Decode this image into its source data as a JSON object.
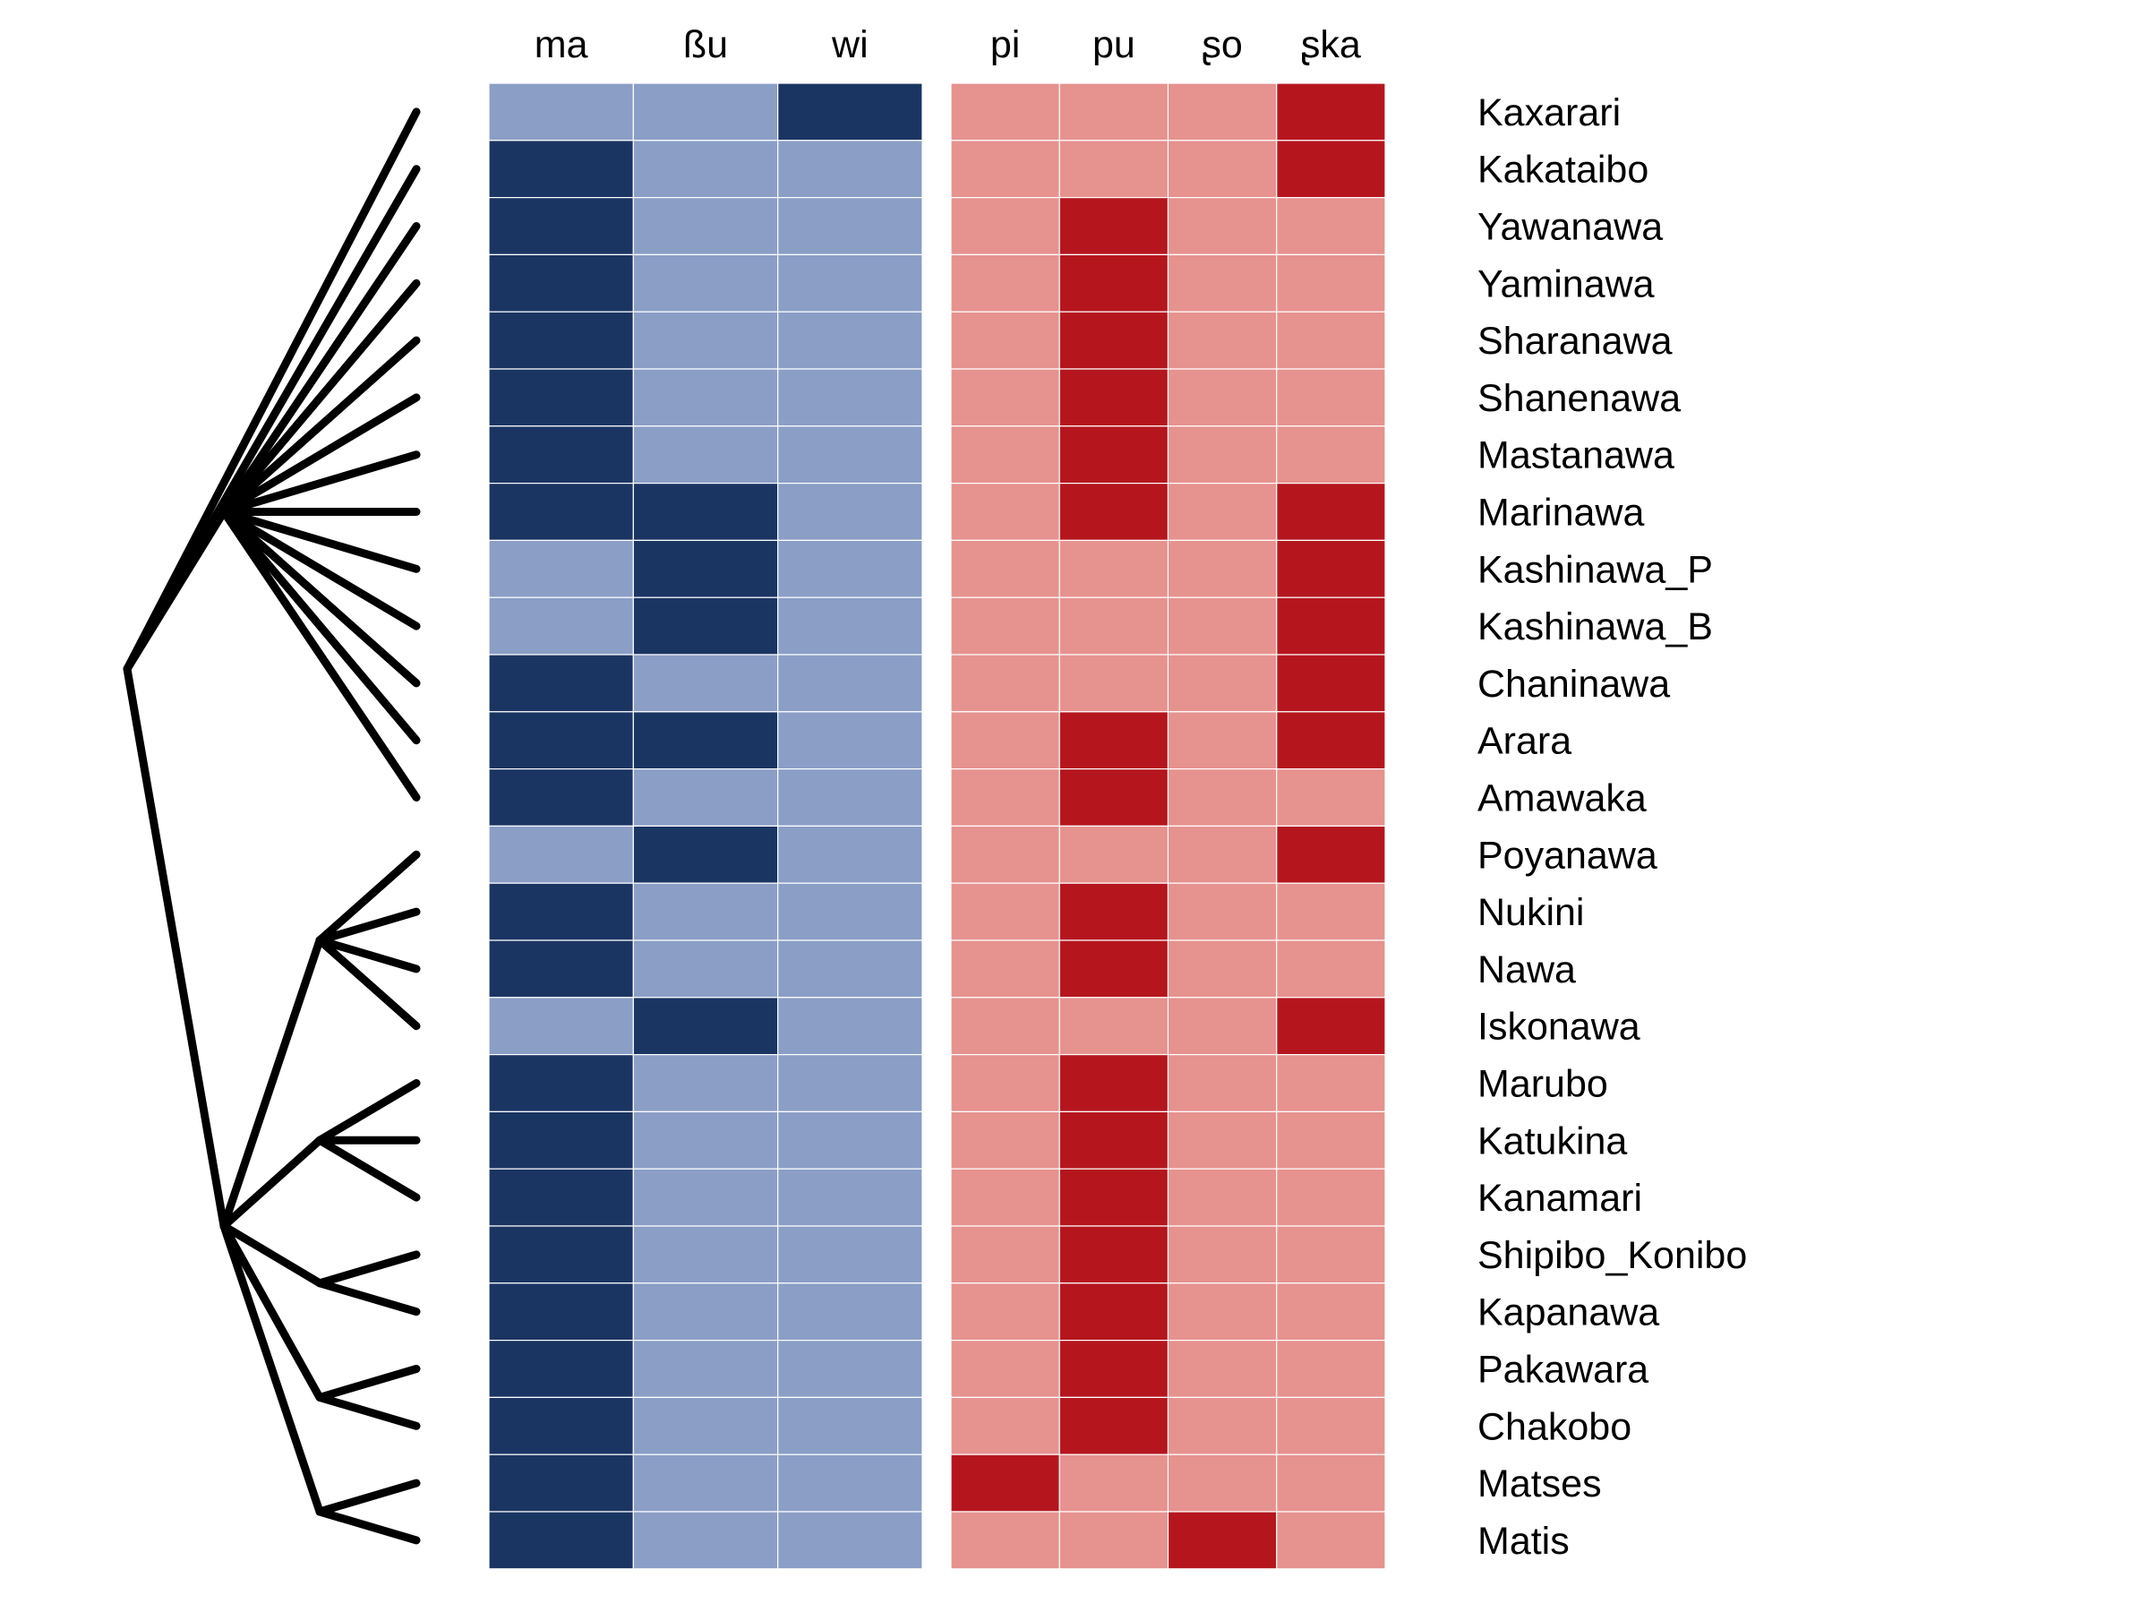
{
  "colors": {
    "blue_present": "#1b3563",
    "blue_absent": "#8a9ec6",
    "red_present": "#b5161e",
    "red_absent": "#e6928f",
    "tree": "#000000"
  },
  "blocks": [
    {
      "id": "left",
      "columns": [
        "ma",
        "ßu",
        "wi"
      ]
    },
    {
      "id": "right",
      "columns": [
        "pi",
        "pu",
        "ʂo",
        "ʂka"
      ]
    }
  ],
  "languages": [
    {
      "name": "Kaxarari",
      "left": [
        0,
        0,
        1
      ],
      "right": [
        0,
        0,
        0,
        1
      ]
    },
    {
      "name": "Kakataibo",
      "left": [
        1,
        0,
        0
      ],
      "right": [
        0,
        0,
        0,
        1
      ]
    },
    {
      "name": "Yawanawa",
      "left": [
        1,
        0,
        0
      ],
      "right": [
        0,
        1,
        0,
        0
      ]
    },
    {
      "name": "Yaminawa",
      "left": [
        1,
        0,
        0
      ],
      "right": [
        0,
        1,
        0,
        0
      ]
    },
    {
      "name": "Sharanawa",
      "left": [
        1,
        0,
        0
      ],
      "right": [
        0,
        1,
        0,
        0
      ]
    },
    {
      "name": "Shanenawa",
      "left": [
        1,
        0,
        0
      ],
      "right": [
        0,
        1,
        0,
        0
      ]
    },
    {
      "name": "Mastanawa",
      "left": [
        1,
        0,
        0
      ],
      "right": [
        0,
        1,
        0,
        0
      ]
    },
    {
      "name": "Marinawa",
      "left": [
        1,
        1,
        0
      ],
      "right": [
        0,
        1,
        0,
        1
      ]
    },
    {
      "name": "Kashinawa_P",
      "left": [
        0,
        1,
        0
      ],
      "right": [
        0,
        0,
        0,
        1
      ]
    },
    {
      "name": "Kashinawa_B",
      "left": [
        0,
        1,
        0
      ],
      "right": [
        0,
        0,
        0,
        1
      ]
    },
    {
      "name": "Chaninawa",
      "left": [
        1,
        0,
        0
      ],
      "right": [
        0,
        0,
        0,
        1
      ]
    },
    {
      "name": "Arara",
      "left": [
        1,
        1,
        0
      ],
      "right": [
        0,
        1,
        0,
        1
      ]
    },
    {
      "name": "Amawaka",
      "left": [
        1,
        0,
        0
      ],
      "right": [
        0,
        1,
        0,
        0
      ]
    },
    {
      "name": "Poyanawa",
      "left": [
        0,
        1,
        0
      ],
      "right": [
        0,
        0,
        0,
        1
      ]
    },
    {
      "name": "Nukini",
      "left": [
        1,
        0,
        0
      ],
      "right": [
        0,
        1,
        0,
        0
      ]
    },
    {
      "name": "Nawa",
      "left": [
        1,
        0,
        0
      ],
      "right": [
        0,
        1,
        0,
        0
      ]
    },
    {
      "name": "Iskonawa",
      "left": [
        0,
        1,
        0
      ],
      "right": [
        0,
        0,
        0,
        1
      ]
    },
    {
      "name": "Marubo",
      "left": [
        1,
        0,
        0
      ],
      "right": [
        0,
        1,
        0,
        0
      ]
    },
    {
      "name": "Katukina",
      "left": [
        1,
        0,
        0
      ],
      "right": [
        0,
        1,
        0,
        0
      ]
    },
    {
      "name": "Kanamari",
      "left": [
        1,
        0,
        0
      ],
      "right": [
        0,
        1,
        0,
        0
      ]
    },
    {
      "name": "Shipibo_Konibo",
      "left": [
        1,
        0,
        0
      ],
      "right": [
        0,
        1,
        0,
        0
      ]
    },
    {
      "name": "Kapanawa",
      "left": [
        1,
        0,
        0
      ],
      "right": [
        0,
        1,
        0,
        0
      ]
    },
    {
      "name": "Pakawara",
      "left": [
        1,
        0,
        0
      ],
      "right": [
        0,
        1,
        0,
        0
      ]
    },
    {
      "name": "Chakobo",
      "left": [
        1,
        0,
        0
      ],
      "right": [
        0,
        1,
        0,
        0
      ]
    },
    {
      "name": "Matses",
      "left": [
        1,
        0,
        0
      ],
      "right": [
        1,
        0,
        0,
        0
      ]
    },
    {
      "name": "Matis",
      "left": [
        1,
        0,
        0
      ],
      "right": [
        0,
        0,
        1,
        0
      ]
    }
  ],
  "tree": {
    "children": [
      {
        "leaf": 0
      },
      {
        "leaf": 1
      },
      {
        "children": [
          {
            "leaf": 2
          },
          {
            "leaf": 3
          },
          {
            "leaf": 4
          },
          {
            "leaf": 5
          },
          {
            "leaf": 6
          },
          {
            "leaf": 7
          },
          {
            "leaf": 8
          },
          {
            "leaf": 9
          },
          {
            "leaf": 10
          },
          {
            "leaf": 11
          },
          {
            "leaf": 12
          }
        ]
      },
      {
        "children": [
          {
            "children": [
              {
                "leaf": 13
              },
              {
                "leaf": 14
              },
              {
                "leaf": 15
              },
              {
                "leaf": 16
              }
            ]
          },
          {
            "children": [
              {
                "leaf": 17
              },
              {
                "leaf": 18
              },
              {
                "leaf": 19
              }
            ]
          },
          {
            "children": [
              {
                "leaf": 20
              },
              {
                "leaf": 21
              }
            ]
          },
          {
            "children": [
              {
                "leaf": 22
              },
              {
                "leaf": 23
              }
            ]
          },
          {
            "children": [
              {
                "leaf": 24
              },
              {
                "leaf": 25
              }
            ]
          }
        ]
      }
    ]
  }
}
